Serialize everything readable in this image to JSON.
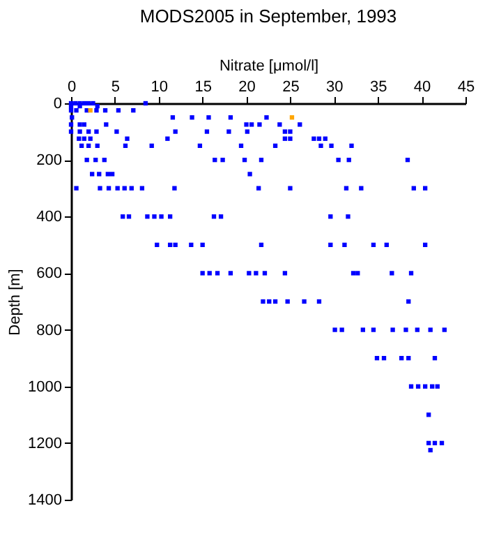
{
  "chart_data": {
    "type": "scatter",
    "title": "MODS2005 in September, 1993",
    "xlabel": "Nitrate [μmol/l]",
    "ylabel": "Depth [m]",
    "marker": "square",
    "grid": false,
    "legend": false,
    "xlim": [
      0,
      45
    ],
    "xticks": [
      0,
      5,
      10,
      15,
      20,
      25,
      30,
      35,
      40,
      45
    ],
    "ylim": [
      1400,
      0
    ],
    "yticks": [
      0,
      200,
      400,
      600,
      800,
      1000,
      1200,
      1400
    ],
    "series": [
      {
        "color": "#0000ff",
        "x": [
          0,
          0.5,
          1,
          1.5,
          2,
          2.5,
          8.5,
          0,
          1,
          3,
          0,
          0.6,
          1.8,
          2.9,
          3.9,
          5.4,
          7.1,
          0.1,
          11.6,
          13.8,
          15.7,
          18.2,
          22.3,
          0,
          1,
          1.5,
          4,
          20,
          20.6,
          21.5,
          23.8,
          26.1,
          0,
          1,
          2,
          2.9,
          5.2,
          11.9,
          15.5,
          18,
          20.1,
          24.4,
          25,
          0.9,
          1.5,
          2.2,
          6.4,
          11,
          24.4,
          25,
          27.7,
          28.3,
          29,
          1.2,
          2,
          3,
          6.2,
          9.2,
          14.7,
          19.4,
          23.3,
          28.5,
          29.7,
          32,
          1.8,
          2.8,
          3.8,
          16.4,
          17.3,
          19.8,
          21.7,
          30.5,
          31.7,
          38.4,
          2.4,
          3.2,
          4.2,
          4.7,
          20.4,
          0.6,
          3.3,
          4.3,
          5.3,
          6.1,
          6.9,
          8.1,
          11.8,
          21.4,
          25,
          31.4,
          33.1,
          39.1,
          40.4,
          5.9,
          6.6,
          8.7,
          9.5,
          10.3,
          11.3,
          16.3,
          17.1,
          29.6,
          31.6,
          9.8,
          11.3,
          11.9,
          13.7,
          15,
          21.7,
          29.6,
          31.2,
          34.5,
          36,
          40.4,
          15,
          15.8,
          16.7,
          18.2,
          20.3,
          21.1,
          22.1,
          24.4,
          32.2,
          32.7,
          36.6,
          38.8,
          21.9,
          22.6,
          23.3,
          24.7,
          26.6,
          28.3,
          38.5,
          30.1,
          30.9,
          33.3,
          34.5,
          36.7,
          38.2,
          39.5,
          41,
          42.6,
          34.9,
          35.7,
          37.7,
          38.5,
          41.5,
          38.8,
          39.6,
          40.4,
          41.2,
          41.8,
          40.8,
          40.8,
          41.5,
          42.3,
          41
        ],
        "values": [
          0,
          0,
          0,
          0,
          0,
          0,
          0,
          10,
          10,
          10,
          25,
          25,
          25,
          25,
          25,
          25,
          25,
          50,
          50,
          50,
          50,
          50,
          50,
          75,
          75,
          75,
          75,
          75,
          75,
          75,
          75,
          75,
          100,
          100,
          100,
          100,
          100,
          100,
          100,
          100,
          100,
          100,
          100,
          125,
          125,
          125,
          125,
          125,
          125,
          125,
          125,
          125,
          125,
          150,
          150,
          150,
          150,
          150,
          150,
          150,
          150,
          150,
          150,
          150,
          200,
          200,
          200,
          200,
          200,
          200,
          200,
          200,
          200,
          200,
          250,
          250,
          250,
          250,
          250,
          300,
          300,
          300,
          300,
          300,
          300,
          300,
          300,
          300,
          300,
          300,
          300,
          300,
          300,
          400,
          400,
          400,
          400,
          400,
          400,
          400,
          400,
          400,
          400,
          500,
          500,
          500,
          500,
          500,
          500,
          500,
          500,
          500,
          500,
          500,
          600,
          600,
          600,
          600,
          600,
          600,
          600,
          600,
          600,
          600,
          600,
          600,
          700,
          700,
          700,
          700,
          700,
          700,
          700,
          800,
          800,
          800,
          800,
          800,
          800,
          800,
          800,
          800,
          900,
          900,
          900,
          900,
          900,
          1000,
          1000,
          1000,
          1000,
          1000,
          1100,
          1200,
          1200,
          1200,
          1225
        ]
      },
      {
        "color": "#ffa500",
        "x": [
          2.2,
          25.2
        ],
        "values": [
          25,
          50
        ]
      }
    ]
  }
}
